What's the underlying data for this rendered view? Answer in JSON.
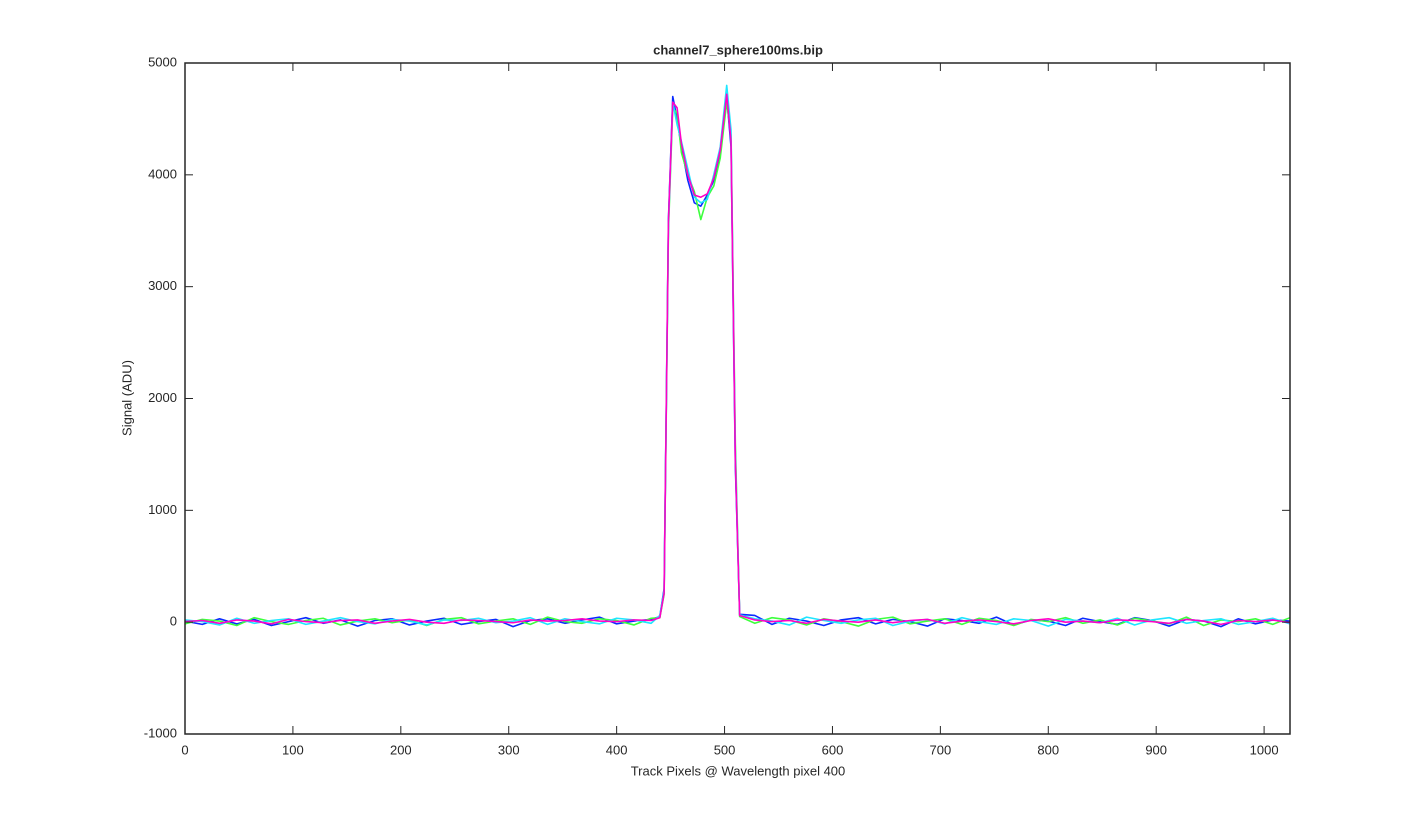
{
  "chart_data": {
    "type": "line",
    "title": "channel7_sphere100ms.bip",
    "x_label": "Track Pixels @ Wavelength pixel 400",
    "y_label": "Signal (ADU)",
    "xlim": [
      0,
      1024
    ],
    "ylim": [
      -1000,
      5000
    ],
    "xticks": [
      0,
      100,
      200,
      300,
      400,
      500,
      600,
      700,
      800,
      900,
      1000
    ],
    "yticks": [
      -1000,
      0,
      1000,
      2000,
      3000,
      4000,
      5000
    ],
    "grid": false,
    "x": [
      0,
      16,
      32,
      48,
      64,
      80,
      96,
      112,
      128,
      144,
      160,
      176,
      192,
      208,
      224,
      240,
      256,
      272,
      288,
      304,
      320,
      336,
      352,
      368,
      384,
      400,
      416,
      432,
      440,
      444,
      448,
      452,
      456,
      460,
      466,
      472,
      478,
      484,
      490,
      496,
      502,
      506,
      510,
      514,
      528,
      544,
      560,
      576,
      592,
      608,
      624,
      640,
      656,
      672,
      688,
      704,
      720,
      736,
      752,
      768,
      784,
      800,
      816,
      832,
      848,
      864,
      880,
      896,
      912,
      928,
      944,
      960,
      976,
      992,
      1008,
      1024
    ],
    "series": [
      {
        "color": "#0a2bff",
        "values": [
          10,
          -20,
          30,
          -15,
          25,
          -30,
          5,
          40,
          -10,
          20,
          -35,
          15,
          30,
          -25,
          10,
          35,
          -20,
          5,
          25,
          -40,
          15,
          30,
          -10,
          20,
          45,
          -15,
          10,
          25,
          50,
          300,
          3600,
          4700,
          4500,
          4250,
          3950,
          3750,
          3720,
          3820,
          3950,
          4200,
          4700,
          4250,
          1400,
          70,
          60,
          -20,
          35,
          10,
          -30,
          20,
          40,
          -15,
          25,
          5,
          -35,
          30,
          15,
          -10,
          45,
          -25,
          20,
          10,
          -30,
          35,
          5,
          -20,
          40,
          15,
          -35,
          25,
          10,
          -40,
          30,
          -15,
          20,
          10
        ]
      },
      {
        "color": "#3dff3d",
        "values": [
          -15,
          25,
          10,
          -30,
          40,
          5,
          -20,
          15,
          35,
          -25,
          10,
          30,
          -5,
          20,
          -30,
          25,
          40,
          -15,
          10,
          30,
          -20,
          45,
          5,
          -10,
          30,
          15,
          -25,
          35,
          40,
          250,
          3500,
          4600,
          4550,
          4200,
          4000,
          3850,
          3600,
          3800,
          3900,
          4150,
          4650,
          4350,
          1600,
          50,
          -10,
          40,
          20,
          -25,
          30,
          5,
          -35,
          25,
          45,
          -15,
          10,
          30,
          -20,
          35,
          15,
          -30,
          25,
          5,
          40,
          -10,
          20,
          -25,
          35,
          10,
          -15,
          45,
          -30,
          20,
          5,
          30,
          -20,
          40
        ]
      },
      {
        "color": "#1ee6ff",
        "values": [
          20,
          5,
          -25,
          35,
          -10,
          15,
          30,
          -20,
          10,
          40,
          5,
          -15,
          25,
          10,
          -25,
          20,
          15,
          35,
          -5,
          10,
          40,
          -20,
          30,
          5,
          -15,
          35,
          20,
          -10,
          60,
          280,
          3550,
          4650,
          4450,
          4300,
          4050,
          3800,
          3750,
          3780,
          4000,
          4250,
          4800,
          4400,
          1500,
          65,
          30,
          10,
          -25,
          45,
          15,
          -10,
          20,
          35,
          -30,
          10,
          25,
          -15,
          40,
          5,
          -20,
          30,
          15,
          -35,
          25,
          10,
          -5,
          35,
          -25,
          20,
          40,
          -10,
          15,
          30,
          -20,
          5,
          35,
          -15
        ]
      },
      {
        "color": "#ff00c8",
        "values": [
          5,
          15,
          -10,
          20,
          10,
          -15,
          25,
          5,
          -5,
          15,
          20,
          -10,
          10,
          25,
          0,
          -10,
          20,
          15,
          5,
          -5,
          20,
          10,
          15,
          30,
          10,
          5,
          20,
          15,
          40,
          260,
          3580,
          4650,
          4600,
          4280,
          4000,
          3820,
          3800,
          3830,
          3970,
          4220,
          4720,
          4300,
          1450,
          60,
          20,
          5,
          15,
          -10,
          25,
          10,
          0,
          20,
          -5,
          15,
          25,
          -10,
          10,
          20,
          5,
          -15,
          15,
          30,
          0,
          10,
          -5,
          20,
          15,
          5,
          -10,
          25,
          10,
          -20,
          15,
          5,
          20,
          -5
        ]
      }
    ]
  }
}
